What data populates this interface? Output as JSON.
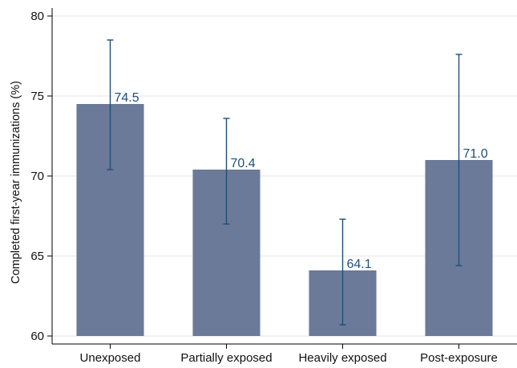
{
  "chart_data": {
    "type": "bar",
    "categories": [
      "Unexposed",
      "Partially exposed",
      "Heavily exposed",
      "Post-exposure"
    ],
    "values": [
      74.5,
      70.4,
      64.1,
      71.0
    ],
    "value_labels": [
      "74.5",
      "70.4",
      "64.1",
      "71.0"
    ],
    "ci_low": [
      70.4,
      67.0,
      60.7,
      64.4
    ],
    "ci_high": [
      78.5,
      73.6,
      67.3,
      77.6
    ],
    "ylabel": "Completed first-year immunizations (%)",
    "xlabel": "",
    "ylim": [
      59.5,
      80.5
    ],
    "yticks": [
      60,
      65,
      70,
      75,
      80
    ],
    "ytick_labels": [
      "60",
      "65",
      "70",
      "75",
      "80"
    ],
    "grid": true,
    "colors": {
      "bar": "#6b7a99",
      "error_bar": "#1f4e79",
      "data_label": "#1f4e79",
      "grid": "#e6e6e6",
      "axis": "#000000"
    }
  }
}
